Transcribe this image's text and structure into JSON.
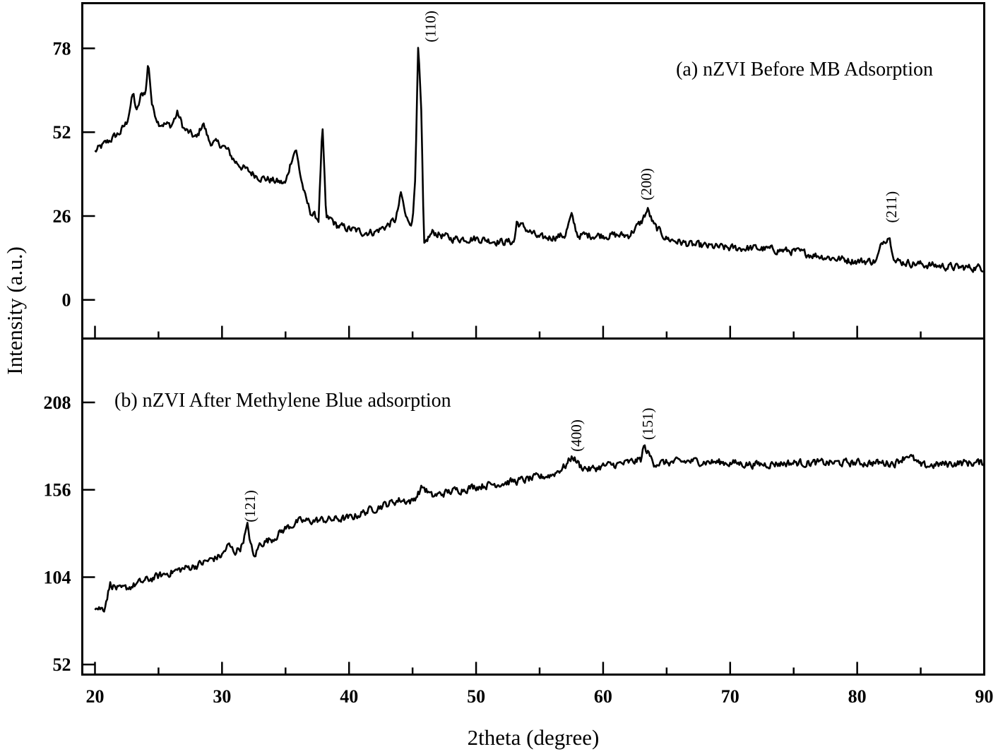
{
  "chart_data": [
    {
      "panel": "a",
      "type": "line",
      "annotation": "(a) nZVI Before MB Adsorption",
      "xlabel": "2theta (degree)",
      "ylabel": "Intensity (a.u.)",
      "xlim": [
        19,
        90
      ],
      "ylim": [
        -12,
        92
      ],
      "xticks": [
        "20",
        "30",
        "40",
        "50",
        "60",
        "70",
        "80",
        "90"
      ],
      "yticks": [
        "0",
        "26",
        "52",
        "78"
      ],
      "series": [
        {
          "x": [
            20,
            21,
            22,
            22.5,
            23,
            23.3,
            23.6,
            24,
            24.2,
            24.5,
            25,
            26,
            26.5,
            27,
            28,
            28.5,
            29,
            30,
            30.5,
            31,
            32,
            33,
            34,
            35,
            35.5,
            35.8,
            36.2,
            36.6,
            37,
            37.6,
            37.9,
            38.2,
            38.6,
            39,
            40,
            41,
            42,
            43,
            43.7,
            44.1,
            44.5,
            45,
            45.2,
            45.45,
            45.7,
            45.9,
            46.2,
            46.6,
            48,
            50,
            52,
            53,
            53.2,
            55,
            57,
            57.5,
            58,
            60,
            62,
            63,
            63.5,
            64,
            65,
            67,
            70,
            72,
            75,
            78,
            80,
            81.5,
            82,
            82.5,
            83,
            85,
            88,
            90
          ],
          "y": [
            46,
            49,
            52,
            55,
            64,
            58,
            63,
            65,
            74,
            60,
            55,
            54,
            58,
            53,
            50,
            55,
            49,
            48,
            46,
            43,
            40,
            38,
            37,
            36,
            44,
            47,
            38,
            31,
            27,
            25,
            54,
            25,
            25,
            23,
            22,
            21,
            21,
            23,
            25,
            33,
            25,
            24,
            38,
            79,
            56,
            16,
            19,
            21,
            19,
            19,
            18,
            18,
            24,
            19,
            20,
            26,
            20,
            20,
            20,
            24,
            28,
            23,
            19,
            17,
            16,
            16,
            15,
            13,
            12,
            12,
            18,
            20,
            12,
            11,
            10,
            10
          ]
        }
      ],
      "annotations": [
        {
          "text": "(110)",
          "x": 46.4,
          "y": 79
        },
        {
          "text": "(200)",
          "x": 63.4,
          "y": 30
        },
        {
          "text": "(211)",
          "x": 82.7,
          "y": 23
        }
      ]
    },
    {
      "panel": "b",
      "type": "line",
      "annotation": "(b) nZVI After Methylene Blue adsorption",
      "xlabel": "2theta (degree)",
      "ylabel": "Intensity (a.u.)",
      "xlim": [
        19,
        90
      ],
      "ylim": [
        46,
        246
      ],
      "xticks": [
        "20",
        "30",
        "40",
        "50",
        "60",
        "70",
        "80",
        "90"
      ],
      "yticks": [
        "52",
        "104",
        "156",
        "208"
      ],
      "series": [
        {
          "x": [
            20,
            20.7,
            21.2,
            22,
            24,
            26,
            28,
            30,
            30.5,
            31,
            31.5,
            32,
            32.5,
            33,
            34,
            35,
            36,
            38,
            40,
            42,
            44,
            45,
            45.8,
            46.5,
            48,
            50,
            52,
            54,
            56,
            57,
            57.6,
            58.2,
            59,
            60,
            61,
            62,
            63,
            63.2,
            64,
            65,
            67,
            70,
            72,
            75,
            78,
            80,
            83,
            84,
            85,
            88,
            90
          ],
          "y": [
            86,
            85,
            100,
            96,
            102,
            107,
            111,
            117,
            123,
            119,
            122,
            134,
            115,
            124,
            127,
            133,
            137,
            138,
            139,
            145,
            150,
            149,
            158,
            152,
            155,
            158,
            160,
            162,
            165,
            170,
            176,
            170,
            168,
            170,
            171,
            172,
            174,
            182,
            172,
            172,
            173,
            172,
            171,
            172,
            172,
            172,
            172,
            177,
            170,
            172,
            172
          ]
        }
      ],
      "annotations": [
        {
          "text": "(121)",
          "x": 32.2,
          "y": 135
        },
        {
          "text": "(400)",
          "x": 57.9,
          "y": 177
        },
        {
          "text": "(151)",
          "x": 63.5,
          "y": 184
        }
      ]
    }
  ]
}
